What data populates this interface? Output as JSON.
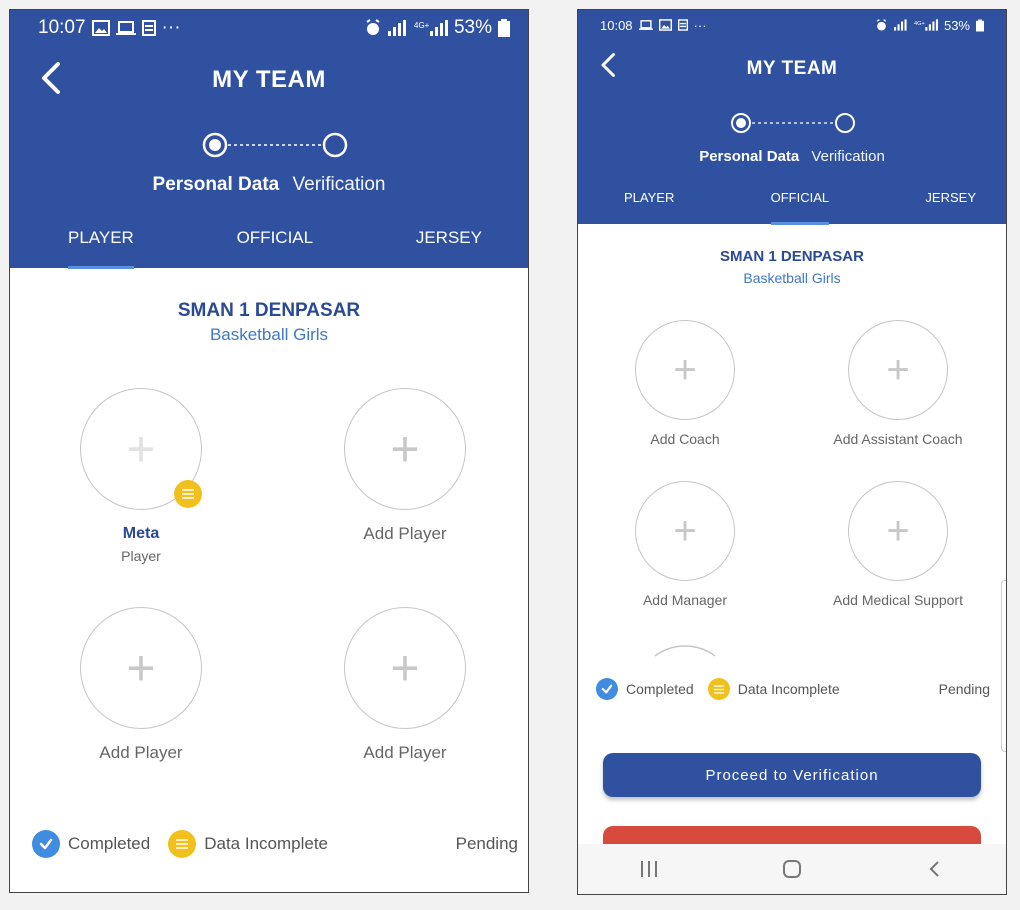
{
  "left_screen": {
    "status_bar": {
      "time": "10:07",
      "battery": "53%"
    },
    "title": "MY TEAM",
    "steps": {
      "active": "Personal Data",
      "inactive": "Verification"
    },
    "tabs": [
      "PLAYER",
      "OFFICIAL",
      "JERSEY"
    ],
    "active_tab": "PLAYER",
    "school": "SMAN 1 DENPASAR",
    "sport": "Basketball Girls",
    "slots": [
      {
        "name": "Meta",
        "role": "Player",
        "status": "Data Incomplete"
      },
      {
        "label": "Add Player"
      },
      {
        "label": "Add Player"
      },
      {
        "label": "Add Player"
      }
    ],
    "legend": {
      "completed": "Completed",
      "incomplete": "Data Incomplete",
      "pending": "Pending"
    }
  },
  "right_screen": {
    "status_bar": {
      "time": "10:08",
      "battery": "53%"
    },
    "title": "MY TEAM",
    "steps": {
      "active": "Personal Data",
      "inactive": "Verification"
    },
    "tabs": [
      "PLAYER",
      "OFFICIAL",
      "JERSEY"
    ],
    "active_tab": "OFFICIAL",
    "school": "SMAN 1 DENPASAR",
    "sport": "Basketball Girls",
    "slots": [
      {
        "label": "Add Coach"
      },
      {
        "label": "Add Assistant Coach"
      },
      {
        "label": "Add Manager"
      },
      {
        "label": "Add Medical Support"
      }
    ],
    "legend": {
      "completed": "Completed",
      "incomplete": "Data Incomplete",
      "pending": "Pending"
    },
    "proceed_button": "Proceed to Verification"
  },
  "colors": {
    "header": "#2f51a0",
    "completed": "#3f8ce0",
    "incomplete": "#f1c01c",
    "action_red": "#d84a3d"
  }
}
